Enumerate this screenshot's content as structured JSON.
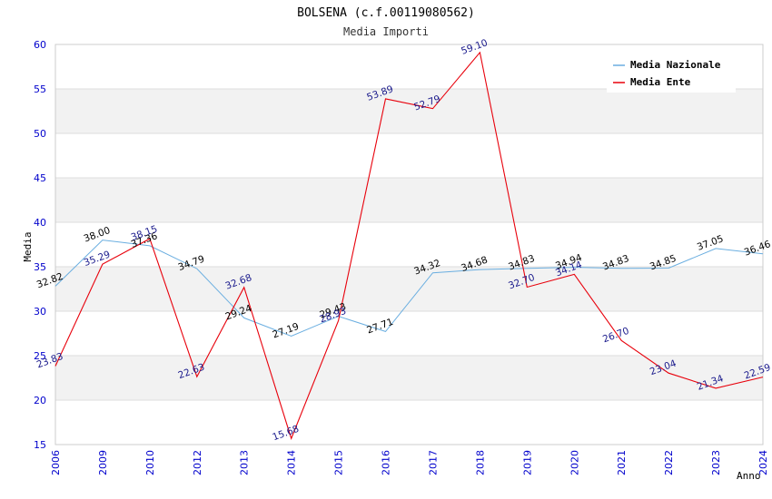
{
  "chart_data": {
    "type": "line",
    "title": "BOLSENA (c.f.00119080562)",
    "subtitle": "Media Importi",
    "xlabel": "Anno",
    "ylabel": "Media",
    "ylim": [
      15,
      60
    ],
    "yticks": [
      15,
      20,
      25,
      30,
      35,
      40,
      45,
      50,
      55,
      60
    ],
    "categories": [
      "2006",
      "2009",
      "2010",
      "2012",
      "2013",
      "2014",
      "2015",
      "2016",
      "2017",
      "2018",
      "2019",
      "2020",
      "2021",
      "2022",
      "2023",
      "2024"
    ],
    "series": [
      {
        "name": "Media Nazionale",
        "color": "#6aaee0",
        "values": [
          32.82,
          38.0,
          37.36,
          34.79,
          29.24,
          27.19,
          29.43,
          27.71,
          34.32,
          34.68,
          34.83,
          34.94,
          34.83,
          34.85,
          37.05,
          36.46
        ],
        "labels": [
          "32.82",
          "38.00",
          "37.36",
          "34.79",
          "29.24",
          "27.19",
          "29.43",
          "27.71",
          "34.32",
          "34.68",
          "34.83",
          "34.94",
          "34.83",
          "34.85",
          "37.05",
          "36.46"
        ]
      },
      {
        "name": "Media Ente",
        "color": "#e8000b",
        "values": [
          23.83,
          35.29,
          38.15,
          22.63,
          32.68,
          15.68,
          28.93,
          53.89,
          52.79,
          59.1,
          32.7,
          34.14,
          26.7,
          23.04,
          21.34,
          22.59
        ],
        "labels": [
          "23.83",
          "35.29",
          "38.15",
          "22.63",
          "32.68",
          "15.68",
          "28.93",
          "53.89",
          "52.79",
          "59.10",
          "32.70",
          "34.14",
          "26.70",
          "23.04",
          "21.34",
          "22.59"
        ]
      }
    ],
    "grid": true,
    "legend_position": "top-right"
  }
}
